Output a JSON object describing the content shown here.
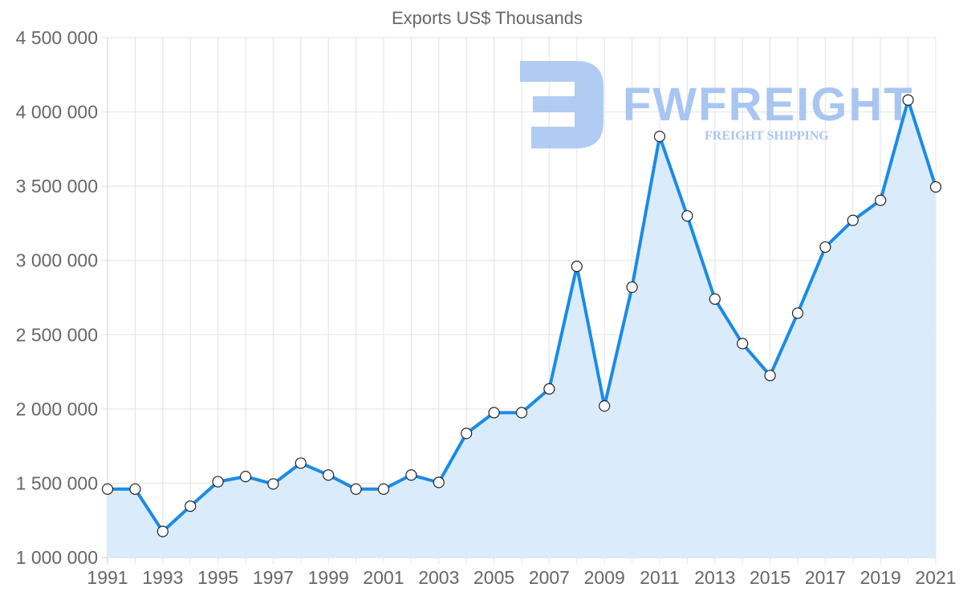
{
  "chart_data": {
    "type": "area",
    "title": "Exports US$ Thousands",
    "xlabel": "",
    "ylabel": "",
    "ylim": [
      1000000,
      4500000
    ],
    "grid": true,
    "legend": null,
    "y_ticks": [
      "1 000 000",
      "1 500 000",
      "2 000 000",
      "2 500 000",
      "3 000 000",
      "3 500 000",
      "4 000 000",
      "4 500 000"
    ],
    "y_tick_values": [
      1000000,
      1500000,
      2000000,
      2500000,
      3000000,
      3500000,
      4000000,
      4500000
    ],
    "x_tick_labels": [
      "1991",
      "1993",
      "1995",
      "1997",
      "1999",
      "2001",
      "2003",
      "2005",
      "2007",
      "2009",
      "2011",
      "2013",
      "2015",
      "2017",
      "2019",
      "2021"
    ],
    "categories": [
      1991,
      1992,
      1993,
      1994,
      1995,
      1996,
      1997,
      1998,
      1999,
      2000,
      2001,
      2002,
      2003,
      2004,
      2005,
      2006,
      2007,
      2008,
      2009,
      2010,
      2011,
      2012,
      2013,
      2014,
      2015,
      2016,
      2017,
      2018,
      2019,
      2020,
      2021
    ],
    "series": [
      {
        "name": "Exports US$ Thousands",
        "color": "#1a8be8",
        "fill": "#d8ebfc",
        "values": [
          1460000,
          1460000,
          1175000,
          1345000,
          1510000,
          1545000,
          1495000,
          1635000,
          1555000,
          1460000,
          1460000,
          1555000,
          1505000,
          1835000,
          1975000,
          1975000,
          2135000,
          2960000,
          2020000,
          2820000,
          3835000,
          3300000,
          2740000,
          2440000,
          2225000,
          2645000,
          3090000,
          3270000,
          3405000,
          4080000,
          3495000
        ]
      }
    ]
  },
  "watermark": {
    "brand": "FWFREIGHT",
    "tagline": "FREIGHT SHIPPING",
    "color": "#a9c6f2"
  }
}
